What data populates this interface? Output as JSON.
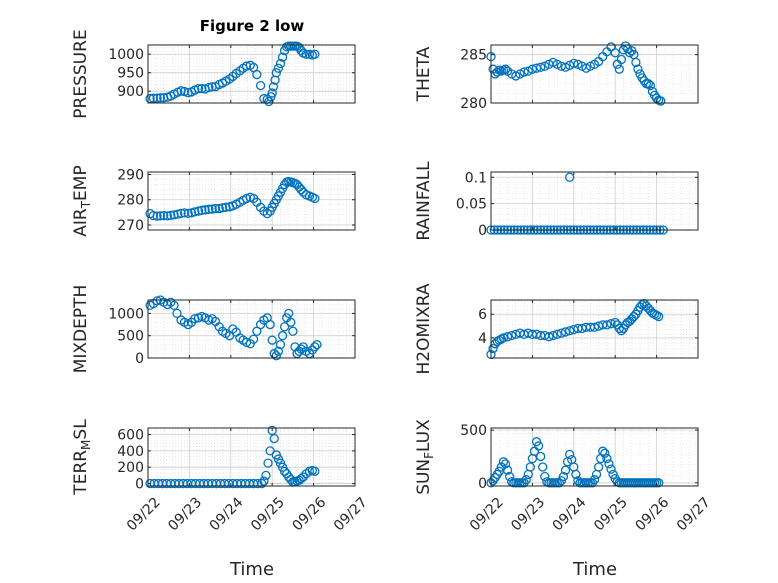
{
  "figure": {
    "title": "Figure 2 low",
    "xlabel": "Time",
    "x_tick_labels": [
      "09/22",
      "09/23",
      "09/24",
      "09/25",
      "09/26",
      "09/27"
    ],
    "marker_color": "#0072BD"
  },
  "chart_data": [
    {
      "type": "scatter",
      "name": "pressure",
      "ylabel": "PRESSURE",
      "ylim": [
        868,
        1025
      ],
      "yticks": [
        900,
        950,
        1000
      ],
      "ytick_labels": [
        "900",
        "950",
        "1000"
      ],
      "xlim": [
        0,
        5
      ],
      "x": [
        0.05,
        0.13,
        0.22,
        0.3,
        0.38,
        0.47,
        0.55,
        0.63,
        0.72,
        0.8,
        0.88,
        0.97,
        1.05,
        1.13,
        1.22,
        1.3,
        1.38,
        1.47,
        1.55,
        1.63,
        1.72,
        1.8,
        1.88,
        1.97,
        2.05,
        2.13,
        2.22,
        2.3,
        2.38,
        2.47,
        2.55,
        2.63,
        2.72,
        2.8,
        2.88,
        2.92,
        2.97,
        3.0,
        3.03,
        3.07,
        3.1,
        3.15,
        3.2,
        3.25,
        3.3,
        3.35,
        3.4,
        3.45,
        3.5,
        3.55,
        3.6,
        3.65,
        3.7,
        3.75,
        3.82,
        3.9,
        3.97,
        4.03
      ],
      "y": [
        880,
        881,
        881,
        882,
        882,
        884,
        887,
        892,
        897,
        901,
        899,
        896,
        898,
        903,
        907,
        907,
        906,
        910,
        912,
        912,
        918,
        922,
        927,
        933,
        940,
        948,
        955,
        962,
        968,
        970,
        964,
        945,
        915,
        880,
        878,
        872,
        885,
        895,
        912,
        930,
        950,
        962,
        975,
        992,
        1010,
        1020,
        1022,
        1022,
        1022,
        1022,
        1022,
        1018,
        1010,
        1003,
        1000,
        1000,
        998,
        1000
      ]
    },
    {
      "type": "scatter",
      "name": "theta",
      "ylabel": "THETA",
      "ylim": [
        280,
        286
      ],
      "yticks": [
        280,
        285
      ],
      "ytick_labels": [
        "280",
        "285"
      ],
      "xlim": [
        0,
        5
      ],
      "x": [
        0.0,
        0.05,
        0.1,
        0.15,
        0.2,
        0.25,
        0.3,
        0.35,
        0.4,
        0.5,
        0.6,
        0.7,
        0.8,
        0.9,
        1.0,
        1.1,
        1.2,
        1.3,
        1.4,
        1.5,
        1.6,
        1.7,
        1.8,
        1.9,
        2.0,
        2.1,
        2.2,
        2.3,
        2.4,
        2.5,
        2.6,
        2.7,
        2.8,
        2.9,
        3.0,
        3.05,
        3.1,
        3.15,
        3.2,
        3.25,
        3.3,
        3.35,
        3.4,
        3.45,
        3.5,
        3.55,
        3.6,
        3.65,
        3.7,
        3.75,
        3.8,
        3.85,
        3.9,
        3.95,
        4.0,
        4.05,
        4.1
      ],
      "y": [
        284.8,
        283.5,
        283.0,
        283.2,
        283.4,
        283.3,
        283.4,
        283.5,
        283.3,
        283.0,
        282.8,
        283.0,
        283.2,
        283.3,
        283.5,
        283.6,
        283.7,
        283.8,
        284.0,
        284.2,
        284.0,
        283.8,
        283.7,
        283.9,
        284.1,
        284.0,
        283.8,
        283.6,
        283.8,
        284.0,
        284.3,
        284.8,
        285.3,
        285.8,
        285.2,
        284.0,
        283.5,
        284.5,
        285.5,
        285.9,
        285.6,
        285.2,
        285.4,
        285.0,
        284.2,
        283.5,
        283.0,
        282.6,
        282.3,
        282.0,
        282.0,
        281.8,
        281.2,
        280.8,
        280.5,
        280.3,
        280.2
      ]
    },
    {
      "type": "scatter",
      "name": "air_temp",
      "ylabel": "AIR_TEMP",
      "ylim": [
        268,
        291
      ],
      "yticks": [
        270,
        280,
        290
      ],
      "ytick_labels": [
        "270",
        "280",
        "290"
      ],
      "xlim": [
        0,
        5
      ],
      "x": [
        0.05,
        0.13,
        0.22,
        0.3,
        0.38,
        0.47,
        0.55,
        0.63,
        0.72,
        0.8,
        0.88,
        0.97,
        1.05,
        1.13,
        1.22,
        1.3,
        1.38,
        1.47,
        1.55,
        1.63,
        1.72,
        1.8,
        1.88,
        1.97,
        2.05,
        2.13,
        2.22,
        2.3,
        2.38,
        2.47,
        2.55,
        2.63,
        2.72,
        2.8,
        2.88,
        2.95,
        3.0,
        3.05,
        3.1,
        3.15,
        3.2,
        3.25,
        3.3,
        3.35,
        3.4,
        3.45,
        3.5,
        3.55,
        3.6,
        3.65,
        3.7,
        3.75,
        3.82,
        3.9,
        3.97,
        4.03
      ],
      "y": [
        274.5,
        273.7,
        273.5,
        273.6,
        273.7,
        273.6,
        273.8,
        274.0,
        274.3,
        274.6,
        274.8,
        274.6,
        274.8,
        275.2,
        275.5,
        275.8,
        276.0,
        276.2,
        276.3,
        276.5,
        276.5,
        276.8,
        277.0,
        277.2,
        277.6,
        278.2,
        279.0,
        279.8,
        280.5,
        281.0,
        280.5,
        279.0,
        277.0,
        275.5,
        274.5,
        275.5,
        277.0,
        278.5,
        280.0,
        281.5,
        283.0,
        284.5,
        286.0,
        287.0,
        287.2,
        287.0,
        286.8,
        286.5,
        286.0,
        285.0,
        284.0,
        283.0,
        282.0,
        281.5,
        281.0,
        280.5
      ]
    },
    {
      "type": "scatter",
      "name": "rainfall",
      "ylabel": "RAINFALL",
      "ylim": [
        0,
        0.11
      ],
      "yticks": [
        0,
        0.05,
        0.1
      ],
      "ytick_labels": [
        "0",
        "0.05",
        "0.1"
      ],
      "xlim": [
        0,
        5
      ],
      "x": [
        0.0,
        0.08,
        0.16,
        0.24,
        0.32,
        0.4,
        0.48,
        0.56,
        0.64,
        0.72,
        0.8,
        0.88,
        0.96,
        1.04,
        1.12,
        1.2,
        1.28,
        1.36,
        1.44,
        1.52,
        1.6,
        1.68,
        1.76,
        1.84,
        1.92,
        2.0,
        2.08,
        2.16,
        2.24,
        2.32,
        2.4,
        2.48,
        2.56,
        2.64,
        2.72,
        2.8,
        2.88,
        2.96,
        3.04,
        3.12,
        3.2,
        3.28,
        3.36,
        3.44,
        3.52,
        3.6,
        3.68,
        3.76,
        3.84,
        3.92,
        4.0,
        4.08,
        4.16,
        1.9
      ],
      "y": [
        0,
        0,
        0,
        0,
        0,
        0,
        0,
        0,
        0,
        0,
        0,
        0,
        0,
        0,
        0,
        0,
        0,
        0,
        0,
        0,
        0,
        0,
        0,
        0,
        0,
        0,
        0,
        0,
        0,
        0,
        0,
        0,
        0,
        0,
        0,
        0,
        0,
        0,
        0,
        0,
        0,
        0,
        0,
        0,
        0,
        0,
        0,
        0,
        0,
        0,
        0,
        0,
        0,
        0.1
      ]
    },
    {
      "type": "scatter",
      "name": "mixdepth",
      "ylabel": "MIXDEPTH",
      "ylim": [
        0,
        1300
      ],
      "yticks": [
        0,
        500,
        1000
      ],
      "ytick_labels": [
        "0",
        "500",
        "1000"
      ],
      "xlim": [
        0,
        5
      ],
      "x": [
        0.05,
        0.13,
        0.22,
        0.3,
        0.38,
        0.47,
        0.55,
        0.63,
        0.7,
        0.8,
        0.88,
        0.97,
        1.05,
        1.13,
        1.22,
        1.3,
        1.38,
        1.47,
        1.55,
        1.63,
        1.72,
        1.8,
        1.88,
        1.97,
        2.05,
        2.13,
        2.22,
        2.3,
        2.38,
        2.47,
        2.55,
        2.63,
        2.72,
        2.8,
        2.88,
        2.95,
        3.0,
        3.05,
        3.1,
        3.15,
        3.2,
        3.25,
        3.3,
        3.35,
        3.4,
        3.45,
        3.5,
        3.55,
        3.6,
        3.65,
        3.7,
        3.75,
        3.82,
        3.9,
        3.97,
        4.03,
        4.08
      ],
      "y": [
        1180,
        1220,
        1280,
        1300,
        1250,
        1200,
        1250,
        1180,
        1000,
        850,
        800,
        750,
        800,
        880,
        900,
        930,
        900,
        850,
        880,
        820,
        700,
        600,
        550,
        500,
        650,
        580,
        450,
        400,
        350,
        320,
        420,
        600,
        750,
        850,
        900,
        750,
        400,
        100,
        50,
        150,
        300,
        500,
        700,
        900,
        1000,
        800,
        600,
        250,
        100,
        150,
        200,
        250,
        150,
        100,
        180,
        250,
        300
      ]
    },
    {
      "type": "scatter",
      "name": "h2omixra",
      "ylabel": "H2OMIXRA",
      "ylim": [
        2.3,
        7.2
      ],
      "yticks": [
        4,
        6
      ],
      "ytick_labels": [
        "4",
        "6"
      ],
      "xlim": [
        0,
        5
      ],
      "x": [
        0.0,
        0.05,
        0.1,
        0.15,
        0.2,
        0.25,
        0.3,
        0.4,
        0.5,
        0.6,
        0.7,
        0.8,
        0.9,
        1.0,
        1.1,
        1.2,
        1.3,
        1.4,
        1.5,
        1.6,
        1.7,
        1.8,
        1.9,
        2.0,
        2.1,
        2.2,
        2.3,
        2.4,
        2.5,
        2.6,
        2.7,
        2.8,
        2.9,
        3.0,
        3.05,
        3.1,
        3.15,
        3.2,
        3.25,
        3.3,
        3.35,
        3.4,
        3.45,
        3.5,
        3.55,
        3.6,
        3.65,
        3.7,
        3.75,
        3.8,
        3.85,
        3.9,
        3.95,
        4.0,
        4.05
      ],
      "y": [
        2.6,
        3.1,
        3.5,
        3.7,
        3.8,
        3.9,
        4.0,
        4.1,
        4.2,
        4.3,
        4.4,
        4.3,
        4.4,
        4.3,
        4.3,
        4.2,
        4.2,
        4.1,
        4.2,
        4.3,
        4.4,
        4.5,
        4.6,
        4.7,
        4.8,
        4.8,
        4.9,
        4.9,
        4.9,
        5.0,
        5.1,
        5.1,
        5.2,
        5.3,
        5.1,
        4.8,
        4.6,
        4.8,
        5.1,
        5.3,
        5.4,
        5.6,
        5.8,
        6.0,
        6.3,
        6.6,
        6.8,
        6.9,
        6.7,
        6.5,
        6.3,
        6.1,
        6.0,
        5.9,
        5.8
      ]
    },
    {
      "type": "scatter",
      "name": "terr_msl",
      "ylabel": "TERR_MSL",
      "ylim": [
        -30,
        680
      ],
      "yticks": [
        0,
        200,
        400,
        600
      ],
      "ytick_labels": [
        "0",
        "200",
        "400",
        "600"
      ],
      "xlim": [
        0,
        5
      ],
      "x": [
        0.05,
        0.15,
        0.25,
        0.35,
        0.45,
        0.55,
        0.65,
        0.75,
        0.85,
        0.95,
        1.05,
        1.15,
        1.25,
        1.35,
        1.45,
        1.55,
        1.65,
        1.75,
        1.85,
        1.95,
        2.05,
        2.15,
        2.25,
        2.35,
        2.45,
        2.55,
        2.65,
        2.75,
        2.8,
        2.85,
        2.9,
        2.95,
        3.0,
        3.05,
        3.1,
        3.15,
        3.2,
        3.25,
        3.3,
        3.35,
        3.4,
        3.45,
        3.5,
        3.55,
        3.6,
        3.65,
        3.7,
        3.75,
        3.82,
        3.9,
        3.97,
        4.03
      ],
      "y": [
        0,
        0,
        0,
        0,
        0,
        0,
        0,
        0,
        0,
        0,
        0,
        0,
        0,
        0,
        0,
        0,
        0,
        0,
        0,
        0,
        0,
        0,
        0,
        0,
        0,
        0,
        0,
        0,
        30,
        100,
        250,
        400,
        650,
        550,
        350,
        300,
        250,
        200,
        150,
        120,
        80,
        50,
        20,
        20,
        30,
        40,
        60,
        80,
        120,
        150,
        160,
        150
      ]
    },
    {
      "type": "scatter",
      "name": "sun_flux",
      "ylabel": "SUN_FLUX",
      "ylim": [
        -30,
        520
      ],
      "yticks": [
        0,
        500
      ],
      "ytick_labels": [
        "0",
        "500"
      ],
      "xlim": [
        0,
        5
      ],
      "x": [
        0.0,
        0.05,
        0.1,
        0.15,
        0.2,
        0.25,
        0.3,
        0.35,
        0.4,
        0.45,
        0.5,
        0.55,
        0.6,
        0.65,
        0.7,
        0.75,
        0.8,
        0.85,
        0.9,
        0.95,
        1.0,
        1.05,
        1.1,
        1.15,
        1.2,
        1.25,
        1.3,
        1.35,
        1.4,
        1.45,
        1.5,
        1.55,
        1.6,
        1.65,
        1.7,
        1.75,
        1.8,
        1.85,
        1.9,
        1.95,
        2.0,
        2.05,
        2.1,
        2.15,
        2.2,
        2.25,
        2.3,
        2.35,
        2.4,
        2.45,
        2.5,
        2.55,
        2.6,
        2.65,
        2.7,
        2.75,
        2.8,
        2.85,
        2.9,
        2.95,
        3.0,
        3.05,
        3.1,
        3.15,
        3.2,
        3.25,
        3.3,
        3.35,
        3.4,
        3.45,
        3.5,
        3.55,
        3.6,
        3.65,
        3.7,
        3.75,
        3.8,
        3.85,
        3.9,
        3.95,
        4.0,
        4.05
      ],
      "y": [
        0,
        20,
        50,
        80,
        110,
        150,
        200,
        180,
        120,
        60,
        10,
        0,
        0,
        0,
        0,
        0,
        0,
        30,
        80,
        150,
        230,
        300,
        390,
        350,
        250,
        150,
        60,
        10,
        0,
        0,
        0,
        0,
        0,
        0,
        20,
        60,
        120,
        200,
        270,
        220,
        150,
        80,
        20,
        0,
        0,
        0,
        0,
        0,
        0,
        0,
        30,
        80,
        150,
        230,
        300,
        280,
        230,
        180,
        130,
        80,
        40,
        10,
        0,
        0,
        0,
        0,
        0,
        0,
        0,
        0,
        0,
        0,
        0,
        0,
        0,
        0,
        0,
        0,
        0,
        0,
        0,
        0
      ]
    }
  ]
}
